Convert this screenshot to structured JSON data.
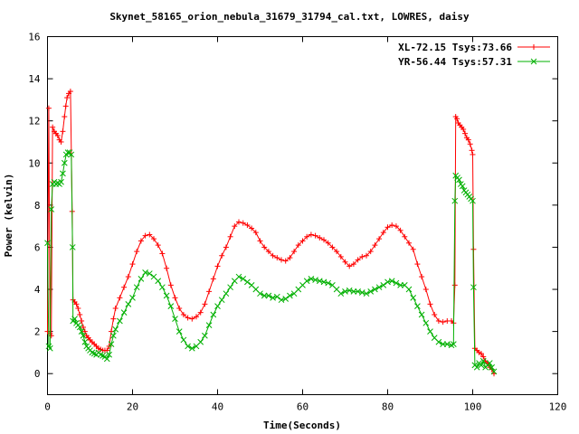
{
  "chart_data": {
    "type": "line",
    "title": "Skynet_58165_orion_nebula_31679_31794_cal.txt, LOWRES, daisy",
    "xlabel": "Time(Seconds)",
    "ylabel": "Power (kelvin)",
    "xlim": [
      0,
      120
    ],
    "ylim": [
      -1,
      16
    ],
    "xticks": [
      0,
      20,
      40,
      60,
      80,
      100,
      120
    ],
    "yticks": [
      0,
      2,
      4,
      6,
      8,
      10,
      12,
      14,
      16
    ],
    "grid": false,
    "legend_position": "top-right",
    "series": [
      {
        "name": "XL-72.15 Tsys:73.66",
        "color": "#ff0000",
        "marker": "plus",
        "points": [
          [
            0.0,
            2.0
          ],
          [
            0.3,
            12.6
          ],
          [
            0.6,
            1.9
          ],
          [
            0.9,
            1.8
          ],
          [
            1.2,
            11.7
          ],
          [
            1.6,
            11.5
          ],
          [
            2.0,
            11.4
          ],
          [
            2.4,
            11.3
          ],
          [
            2.8,
            11.1
          ],
          [
            3.2,
            11.0
          ],
          [
            3.6,
            11.5
          ],
          [
            4.0,
            12.2
          ],
          [
            4.3,
            12.7
          ],
          [
            4.6,
            13.1
          ],
          [
            5.0,
            13.3
          ],
          [
            5.4,
            13.4
          ],
          [
            5.8,
            7.7
          ],
          [
            6.0,
            3.5
          ],
          [
            6.4,
            3.4
          ],
          [
            6.8,
            3.3
          ],
          [
            7.2,
            3.1
          ],
          [
            7.6,
            2.8
          ],
          [
            8.0,
            2.5
          ],
          [
            8.4,
            2.2
          ],
          [
            8.8,
            2.0
          ],
          [
            9.2,
            1.8
          ],
          [
            9.6,
            1.7
          ],
          [
            10.0,
            1.6
          ],
          [
            10.5,
            1.5
          ],
          [
            11.0,
            1.4
          ],
          [
            11.5,
            1.3
          ],
          [
            12.0,
            1.2
          ],
          [
            12.5,
            1.15
          ],
          [
            13.0,
            1.1
          ],
          [
            13.5,
            1.1
          ],
          [
            14.0,
            1.1
          ],
          [
            14.5,
            1.3
          ],
          [
            15.0,
            2.0
          ],
          [
            15.5,
            2.6
          ],
          [
            16.0,
            3.1
          ],
          [
            17.0,
            3.6
          ],
          [
            18.0,
            4.1
          ],
          [
            19.0,
            4.6
          ],
          [
            20.0,
            5.2
          ],
          [
            21.0,
            5.8
          ],
          [
            22.0,
            6.3
          ],
          [
            23.0,
            6.55
          ],
          [
            24.0,
            6.6
          ],
          [
            25.0,
            6.4
          ],
          [
            26.0,
            6.1
          ],
          [
            27.0,
            5.7
          ],
          [
            28.0,
            5.0
          ],
          [
            29.0,
            4.2
          ],
          [
            30.0,
            3.6
          ],
          [
            31.0,
            3.1
          ],
          [
            32.0,
            2.8
          ],
          [
            33.0,
            2.65
          ],
          [
            34.0,
            2.6
          ],
          [
            35.0,
            2.7
          ],
          [
            36.0,
            2.9
          ],
          [
            37.0,
            3.3
          ],
          [
            38.0,
            3.9
          ],
          [
            39.0,
            4.5
          ],
          [
            40.0,
            5.1
          ],
          [
            41.0,
            5.6
          ],
          [
            42.0,
            6.0
          ],
          [
            43.0,
            6.5
          ],
          [
            44.0,
            7.0
          ],
          [
            45.0,
            7.2
          ],
          [
            46.0,
            7.15
          ],
          [
            47.0,
            7.05
          ],
          [
            48.0,
            6.9
          ],
          [
            49.0,
            6.7
          ],
          [
            50.0,
            6.3
          ],
          [
            51.0,
            6.0
          ],
          [
            52.0,
            5.8
          ],
          [
            53.0,
            5.6
          ],
          [
            54.0,
            5.5
          ],
          [
            55.0,
            5.4
          ],
          [
            56.0,
            5.35
          ],
          [
            57.0,
            5.5
          ],
          [
            58.0,
            5.8
          ],
          [
            59.0,
            6.1
          ],
          [
            60.0,
            6.3
          ],
          [
            61.0,
            6.5
          ],
          [
            62.0,
            6.6
          ],
          [
            63.0,
            6.55
          ],
          [
            64.0,
            6.45
          ],
          [
            65.0,
            6.35
          ],
          [
            66.0,
            6.2
          ],
          [
            67.0,
            6.0
          ],
          [
            68.0,
            5.8
          ],
          [
            69.0,
            5.55
          ],
          [
            70.0,
            5.3
          ],
          [
            71.0,
            5.1
          ],
          [
            72.0,
            5.2
          ],
          [
            73.0,
            5.4
          ],
          [
            74.0,
            5.55
          ],
          [
            75.0,
            5.6
          ],
          [
            76.0,
            5.8
          ],
          [
            77.0,
            6.1
          ],
          [
            78.0,
            6.4
          ],
          [
            79.0,
            6.7
          ],
          [
            80.0,
            6.95
          ],
          [
            81.0,
            7.05
          ],
          [
            82.0,
            7.0
          ],
          [
            83.0,
            6.8
          ],
          [
            84.0,
            6.5
          ],
          [
            85.0,
            6.2
          ],
          [
            86.0,
            5.9
          ],
          [
            87.0,
            5.2
          ],
          [
            88.0,
            4.6
          ],
          [
            89.0,
            4.0
          ],
          [
            90.0,
            3.3
          ],
          [
            91.0,
            2.8
          ],
          [
            92.0,
            2.5
          ],
          [
            93.0,
            2.45
          ],
          [
            94.0,
            2.5
          ],
          [
            95.0,
            2.5
          ],
          [
            95.5,
            2.4
          ],
          [
            95.8,
            4.2
          ],
          [
            96.0,
            12.2
          ],
          [
            96.3,
            12.1
          ],
          [
            96.6,
            11.9
          ],
          [
            97.0,
            11.8
          ],
          [
            97.4,
            11.7
          ],
          [
            97.8,
            11.6
          ],
          [
            98.2,
            11.4
          ],
          [
            98.6,
            11.2
          ],
          [
            99.0,
            11.1
          ],
          [
            99.4,
            10.9
          ],
          [
            99.8,
            10.6
          ],
          [
            100.0,
            10.4
          ],
          [
            100.2,
            5.9
          ],
          [
            100.5,
            1.2
          ],
          [
            101.0,
            1.1
          ],
          [
            101.5,
            1.0
          ],
          [
            102.0,
            0.95
          ],
          [
            102.5,
            0.8
          ],
          [
            103.0,
            0.6
          ],
          [
            103.5,
            0.5
          ],
          [
            104.0,
            0.3
          ],
          [
            104.5,
            0.2
          ],
          [
            105.0,
            0.0
          ]
        ]
      },
      {
        "name": "YR-56.44 Tsys:57.31",
        "color": "#00b000",
        "marker": "cross",
        "points": [
          [
            0.0,
            6.2
          ],
          [
            0.3,
            1.3
          ],
          [
            0.6,
            1.2
          ],
          [
            0.9,
            7.8
          ],
          [
            1.2,
            9.0
          ],
          [
            1.6,
            9.1
          ],
          [
            2.0,
            9.0
          ],
          [
            2.4,
            9.05
          ],
          [
            2.8,
            9.0
          ],
          [
            3.2,
            9.1
          ],
          [
            3.6,
            9.5
          ],
          [
            4.0,
            10.0
          ],
          [
            4.4,
            10.4
          ],
          [
            4.8,
            10.5
          ],
          [
            5.2,
            10.5
          ],
          [
            5.6,
            10.4
          ],
          [
            5.9,
            6.0
          ],
          [
            6.0,
            2.5
          ],
          [
            6.4,
            2.6
          ],
          [
            6.8,
            2.4
          ],
          [
            7.2,
            2.3
          ],
          [
            7.6,
            2.2
          ],
          [
            8.0,
            2.0
          ],
          [
            8.4,
            1.8
          ],
          [
            8.8,
            1.5
          ],
          [
            9.2,
            1.3
          ],
          [
            9.6,
            1.2
          ],
          [
            10.0,
            1.1
          ],
          [
            10.5,
            1.0
          ],
          [
            11.0,
            0.95
          ],
          [
            11.5,
            0.9
          ],
          [
            12.0,
            1.0
          ],
          [
            12.5,
            0.9
          ],
          [
            13.0,
            0.85
          ],
          [
            13.5,
            0.8
          ],
          [
            14.0,
            0.7
          ],
          [
            14.5,
            0.9
          ],
          [
            15.0,
            1.4
          ],
          [
            15.5,
            1.8
          ],
          [
            16.0,
            2.1
          ],
          [
            17.0,
            2.5
          ],
          [
            18.0,
            2.9
          ],
          [
            19.0,
            3.3
          ],
          [
            20.0,
            3.6
          ],
          [
            21.0,
            4.1
          ],
          [
            22.0,
            4.5
          ],
          [
            23.0,
            4.8
          ],
          [
            24.0,
            4.75
          ],
          [
            25.0,
            4.6
          ],
          [
            26.0,
            4.4
          ],
          [
            27.0,
            4.1
          ],
          [
            28.0,
            3.7
          ],
          [
            29.0,
            3.2
          ],
          [
            30.0,
            2.6
          ],
          [
            31.0,
            2.0
          ],
          [
            32.0,
            1.6
          ],
          [
            33.0,
            1.3
          ],
          [
            34.0,
            1.2
          ],
          [
            35.0,
            1.3
          ],
          [
            36.0,
            1.5
          ],
          [
            37.0,
            1.8
          ],
          [
            38.0,
            2.3
          ],
          [
            39.0,
            2.8
          ],
          [
            40.0,
            3.2
          ],
          [
            41.0,
            3.5
          ],
          [
            42.0,
            3.8
          ],
          [
            43.0,
            4.1
          ],
          [
            44.0,
            4.4
          ],
          [
            45.0,
            4.6
          ],
          [
            46.0,
            4.5
          ],
          [
            47.0,
            4.35
          ],
          [
            48.0,
            4.2
          ],
          [
            49.0,
            4.0
          ],
          [
            50.0,
            3.8
          ],
          [
            51.0,
            3.7
          ],
          [
            52.0,
            3.7
          ],
          [
            53.0,
            3.6
          ],
          [
            54.0,
            3.65
          ],
          [
            55.0,
            3.5
          ],
          [
            56.0,
            3.55
          ],
          [
            57.0,
            3.7
          ],
          [
            58.0,
            3.8
          ],
          [
            59.0,
            4.0
          ],
          [
            60.0,
            4.2
          ],
          [
            61.0,
            4.4
          ],
          [
            62.0,
            4.5
          ],
          [
            63.0,
            4.45
          ],
          [
            64.0,
            4.4
          ],
          [
            65.0,
            4.35
          ],
          [
            66.0,
            4.3
          ],
          [
            67.0,
            4.2
          ],
          [
            68.0,
            4.0
          ],
          [
            69.0,
            3.8
          ],
          [
            70.0,
            3.9
          ],
          [
            71.0,
            3.95
          ],
          [
            72.0,
            3.9
          ],
          [
            73.0,
            3.9
          ],
          [
            74.0,
            3.85
          ],
          [
            75.0,
            3.8
          ],
          [
            76.0,
            3.9
          ],
          [
            77.0,
            4.0
          ],
          [
            78.0,
            4.1
          ],
          [
            79.0,
            4.2
          ],
          [
            80.0,
            4.35
          ],
          [
            81.0,
            4.4
          ],
          [
            82.0,
            4.3
          ],
          [
            83.0,
            4.2
          ],
          [
            84.0,
            4.2
          ],
          [
            85.0,
            4.0
          ],
          [
            86.0,
            3.6
          ],
          [
            87.0,
            3.2
          ],
          [
            88.0,
            2.8
          ],
          [
            89.0,
            2.4
          ],
          [
            90.0,
            2.0
          ],
          [
            91.0,
            1.7
          ],
          [
            92.0,
            1.5
          ],
          [
            93.0,
            1.4
          ],
          [
            94.0,
            1.4
          ],
          [
            95.0,
            1.35
          ],
          [
            95.5,
            1.4
          ],
          [
            95.8,
            8.2
          ],
          [
            96.0,
            9.4
          ],
          [
            96.4,
            9.3
          ],
          [
            96.8,
            9.2
          ],
          [
            97.2,
            9.0
          ],
          [
            97.6,
            8.9
          ],
          [
            98.0,
            8.7
          ],
          [
            98.4,
            8.6
          ],
          [
            98.8,
            8.5
          ],
          [
            99.2,
            8.4
          ],
          [
            99.6,
            8.3
          ],
          [
            100.0,
            8.2
          ],
          [
            100.2,
            4.1
          ],
          [
            100.5,
            0.4
          ],
          [
            101.0,
            0.3
          ],
          [
            101.5,
            0.5
          ],
          [
            102.0,
            0.4
          ],
          [
            102.5,
            0.6
          ],
          [
            103.0,
            0.3
          ],
          [
            103.5,
            0.4
          ],
          [
            104.0,
            0.5
          ],
          [
            104.5,
            0.3
          ],
          [
            105.0,
            0.1
          ]
        ]
      }
    ]
  }
}
